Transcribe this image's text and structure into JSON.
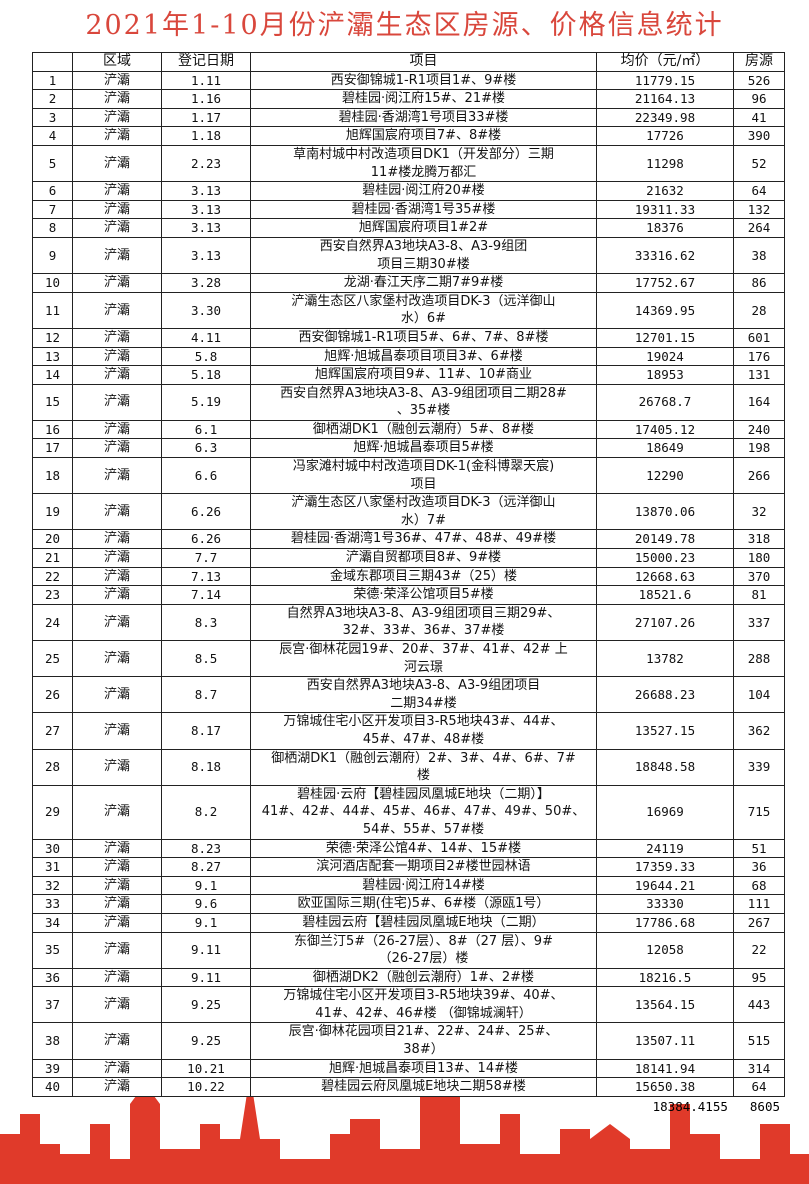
{
  "title": "2021年1-10月份浐灞生态区房源、价格信息统计",
  "colors": {
    "title": "#d9473c",
    "skyline": "#e03a2a"
  },
  "table": {
    "headers": [
      "",
      "区域",
      "登记日期",
      "项目",
      "均价（元/㎡）",
      "房源"
    ],
    "rows": [
      [
        "1",
        "浐灞",
        "1.11",
        "西安御锦城1-R1项目1#、9#楼",
        "11779.15",
        "526"
      ],
      [
        "2",
        "浐灞",
        "1.16",
        "碧桂园·阅江府15#、21#楼",
        "21164.13",
        "96"
      ],
      [
        "3",
        "浐灞",
        "1.17",
        "碧桂园·香湖湾1号项目33#楼",
        "22349.98",
        "41"
      ],
      [
        "4",
        "浐灞",
        "1.18",
        "旭辉国宸府项目7#、8#楼",
        "17726",
        "390"
      ],
      [
        "5",
        "浐灞",
        "2.23",
        "草南村城中村改造项目DK1（开发部分）三期\n11#楼龙腾万都汇",
        "11298",
        "52"
      ],
      [
        "6",
        "浐灞",
        "3.13",
        "碧桂园·阅江府20#楼",
        "21632",
        "64"
      ],
      [
        "7",
        "浐灞",
        "3.13",
        "碧桂园·香湖湾1号35#楼",
        "19311.33",
        "132"
      ],
      [
        "8",
        "浐灞",
        "3.13",
        "旭辉国宸府项目1#2#",
        "18376",
        "264"
      ],
      [
        "9",
        "浐灞",
        "3.13",
        "西安自然界A3地块A3-8、A3-9组团\n项目三期30#楼",
        "33316.62",
        "38"
      ],
      [
        "10",
        "浐灞",
        "3.28",
        "龙湖·春江天序二期7#9#楼",
        "17752.67",
        "86"
      ],
      [
        "11",
        "浐灞",
        "3.30",
        "浐灞生态区八家堡村改造项目DK-3（远洋御山\n水）6#",
        "14369.95",
        "28"
      ],
      [
        "12",
        "浐灞",
        "4.11",
        "西安御锦城1-R1项目5#、6#、7#、8#楼",
        "12701.15",
        "601"
      ],
      [
        "13",
        "浐灞",
        "5.8",
        "旭辉·旭城昌泰项目项目3#、6#楼",
        "19024",
        "176"
      ],
      [
        "14",
        "浐灞",
        "5.18",
        "旭辉国宸府项目9#、11#、10#商业",
        "18953",
        "131"
      ],
      [
        "15",
        "浐灞",
        "5.19",
        "西安自然界A3地块A3-8、A3-9组团项目二期28#\n、35#楼",
        "26768.7",
        "164"
      ],
      [
        "16",
        "浐灞",
        "6.1",
        "御栖湖DK1（融创云潮府）5#、8#楼",
        "17405.12",
        "240"
      ],
      [
        "17",
        "浐灞",
        "6.3",
        "旭辉·旭城昌泰项目5#楼",
        "18649",
        "198"
      ],
      [
        "18",
        "浐灞",
        "6.6",
        "冯家滩村城中村改造项目DK-1(金科博翠天宸)\n项目",
        "12290",
        "266"
      ],
      [
        "19",
        "浐灞",
        "6.26",
        "浐灞生态区八家堡村改造项目DK-3（远洋御山\n水）7#",
        "13870.06",
        "32"
      ],
      [
        "20",
        "浐灞",
        "6.26",
        "碧桂园·香湖湾1号36#、47#、48#、49#楼",
        "20149.78",
        "318"
      ],
      [
        "21",
        "浐灞",
        "7.7",
        "浐灞自贸都项目8#、9#楼",
        "15000.23",
        "180"
      ],
      [
        "22",
        "浐灞",
        "7.13",
        "金域东郡项目三期43#（25）楼",
        "12668.63",
        "370"
      ],
      [
        "23",
        "浐灞",
        "7.14",
        "荣德·荣泽公馆项目5#楼",
        "18521.6",
        "81"
      ],
      [
        "24",
        "浐灞",
        "8.3",
        "自然界A3地块A3-8、A3-9组团项目三期29#、\n32#、33#、36#、37#楼",
        "27107.26",
        "337"
      ],
      [
        "25",
        "浐灞",
        "8.5",
        "辰宫·御林花园19#、20#、37#、41#、42# 上\n河云璟",
        "13782",
        "288"
      ],
      [
        "26",
        "浐灞",
        "8.7",
        "西安自然界A3地块A3-8、A3-9组团项目\n二期34#楼",
        "26688.23",
        "104"
      ],
      [
        "27",
        "浐灞",
        "8.17",
        "万锦城住宅小区开发项目3-R5地块43#、44#、\n45#、47#、48#楼",
        "13527.15",
        "362"
      ],
      [
        "28",
        "浐灞",
        "8.18",
        "御栖湖DK1（融创云潮府）2#、3#、4#、6#、7#\n楼",
        "18848.58",
        "339"
      ],
      [
        "29",
        "浐灞",
        "8.2",
        "碧桂园·云府【碧桂园凤凰城E地块（二期）】\n41#、42#、44#、45#、46#、47#、49#、50#、\n54#、55#、57#楼",
        "16969",
        "715"
      ],
      [
        "30",
        "浐灞",
        "8.23",
        "荣德·荣泽公馆4#、14#、15#楼",
        "24119",
        "51"
      ],
      [
        "31",
        "浐灞",
        "8.27",
        "滨河酒店配套一期项目2#楼世园林语",
        "17359.33",
        "36"
      ],
      [
        "32",
        "浐灞",
        "9.1",
        "碧桂园·阅江府14#楼",
        "19644.21",
        "68"
      ],
      [
        "33",
        "浐灞",
        "9.6",
        "欧亚国际三期(住宅)5#、6#楼（源瓯1号）",
        "33330",
        "111"
      ],
      [
        "34",
        "浐灞",
        "9.1",
        "碧桂园云府【碧桂园凤凰城E地块（二期）",
        "17786.68",
        "267"
      ],
      [
        "35",
        "浐灞",
        "9.11",
        "东御兰汀5#（26-27层）、8#（27 层）、9#\n（26-27层）楼",
        "12058",
        "22"
      ],
      [
        "36",
        "浐灞",
        "9.11",
        "御栖湖DK2（融创云潮府）1#、2#楼",
        "18216.5",
        "95"
      ],
      [
        "37",
        "浐灞",
        "9.25",
        "万锦城住宅小区开发项目3-R5地块39#、40#、\n41#、42#、46#楼 （御锦城澜轩）",
        "13564.15",
        "443"
      ],
      [
        "38",
        "浐灞",
        "9.25",
        "辰宫·御林花园项目21#、22#、24#、25#、\n38#）",
        "13507.11",
        "515"
      ],
      [
        "39",
        "浐灞",
        "10.21",
        "旭辉·旭城昌泰项目13#、14#楼",
        "18141.94",
        "314"
      ],
      [
        "40",
        "浐灞",
        "10.22",
        "碧桂园云府凤凰城E地块二期58#楼",
        "15650.38",
        "64"
      ]
    ]
  },
  "summary": {
    "avg_price": "18384.4155",
    "total_units": "8605"
  }
}
